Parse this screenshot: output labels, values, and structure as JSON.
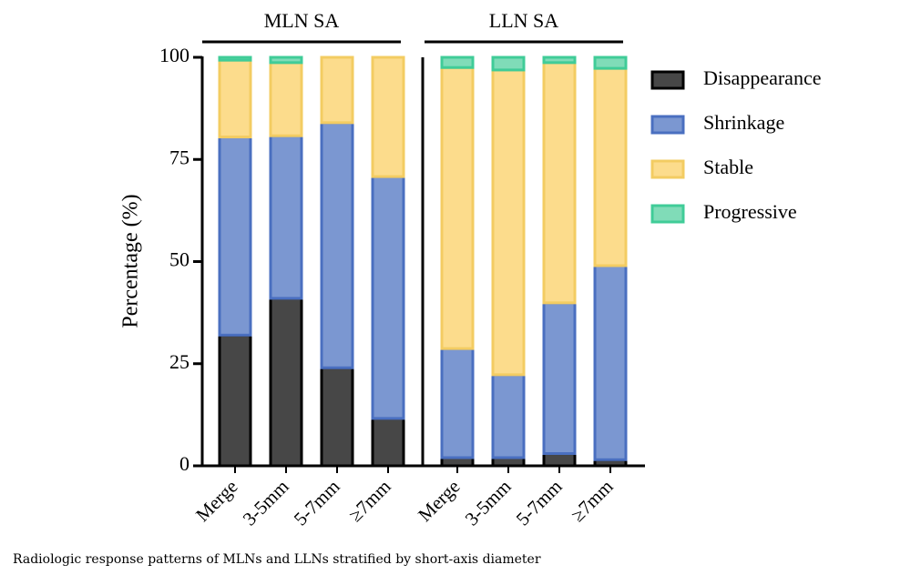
{
  "chart_data": {
    "type": "stacked_bar",
    "y_label": "Percentage (%)",
    "caption": "Radiologic response patterns of MLNs and LLNs stratified by short-axis diameter",
    "groups": [
      {
        "label": "MLN SA",
        "count": 4
      },
      {
        "label": "LLN SA",
        "count": 4
      }
    ],
    "categories": [
      "Merge",
      "3-5mm",
      "5-7mm",
      "≥7mm",
      "Merge",
      "3-5mm",
      "5-7mm",
      "≥7mm"
    ],
    "series": [
      {
        "name": "Disappearance",
        "color": "#474747",
        "values": [
          32,
          41,
          24,
          11.6,
          2,
          2,
          3,
          1.5
        ]
      },
      {
        "name": "Shrinkage",
        "color": "#7b97d1",
        "values": [
          48.5,
          39.8,
          60,
          59.2,
          26.7,
          20.3,
          36.9,
          47.5
        ]
      },
      {
        "name": "Stable",
        "color": "#fcdc8c",
        "values": [
          18.8,
          17.9,
          16,
          29.2,
          68.8,
          74.6,
          58.8,
          48.3
        ]
      },
      {
        "name": "Progressive",
        "color": "#80dcb8",
        "values": [
          0.7,
          1.3,
          0,
          0,
          2.5,
          3.1,
          1.3,
          2.7
        ]
      }
    ],
    "ylim": [
      0,
      100
    ],
    "yticks": [
      0,
      25,
      50,
      75,
      100
    ]
  }
}
